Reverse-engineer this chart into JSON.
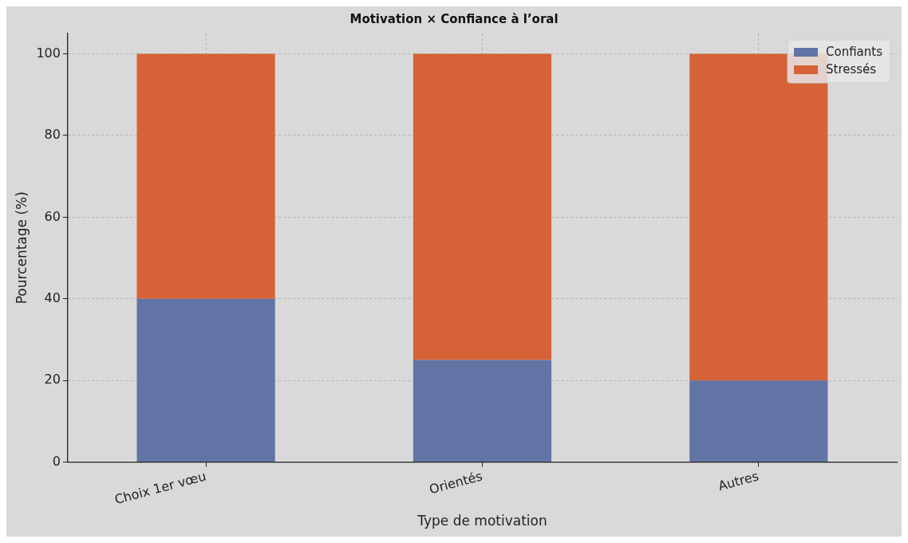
{
  "chart_data": {
    "type": "bar",
    "title": "Motivation × Confiance à l’oral",
    "xlabel": "Type de motivation",
    "ylabel": "Pourcentage (%)",
    "categories": [
      "Choix 1er vœu",
      "Orientés",
      "Autres"
    ],
    "stacked": true,
    "series": [
      {
        "name": "Confiants",
        "color": "#6274a6",
        "values": [
          40,
          25,
          20
        ]
      },
      {
        "name": "Stressés",
        "color": "#d66237",
        "values": [
          60,
          75,
          80
        ]
      }
    ],
    "ylim": [
      0,
      105
    ],
    "yticks": [
      0,
      20,
      40,
      60,
      80,
      100
    ],
    "grid": true,
    "legend": "top right"
  }
}
